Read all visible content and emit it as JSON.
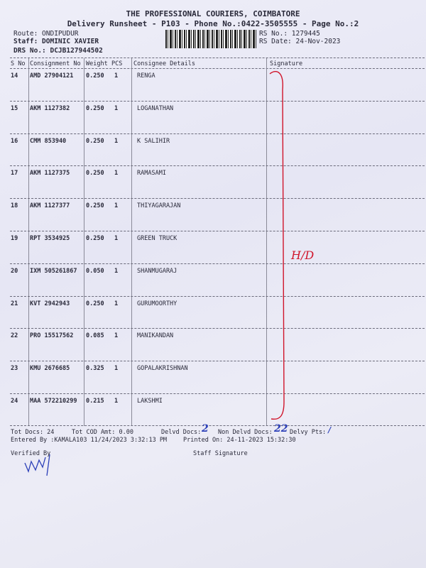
{
  "header": {
    "company": "THE PROFESSIONAL COURIERS, COIMBATORE",
    "subtitle": "Delivery Runsheet - P103 - Phone No.:0422-3505555 - Page No.:2",
    "route": "Route: ONDIPUDUR",
    "staff": "Staff: DOMINIC XAVIER",
    "drs_no": "DRS No.: DCJB127944502",
    "rs_no": "RS No.: 1279445",
    "rs_date": "RS Date: 24-Nov-2023"
  },
  "table": {
    "columns": [
      "S No",
      "Consignment No",
      "Weight",
      "PCS",
      "Consignee Details",
      "Signature"
    ],
    "rows": [
      {
        "sno": "14",
        "consignment": "AMD 27904121",
        "weight": "0.250",
        "pcs": "1",
        "consignee": "RENGA"
      },
      {
        "sno": "15",
        "consignment": "AKM 1127382",
        "weight": "0.250",
        "pcs": "1",
        "consignee": "LOGANATHAN"
      },
      {
        "sno": "16",
        "consignment": "CMM 853940",
        "weight": "0.250",
        "pcs": "1",
        "consignee": "K SALIHIR"
      },
      {
        "sno": "17",
        "consignment": "AKM 1127375",
        "weight": "0.250",
        "pcs": "1",
        "consignee": "RAMASAMI"
      },
      {
        "sno": "18",
        "consignment": "AKM 1127377",
        "weight": "0.250",
        "pcs": "1",
        "consignee": "THIYAGARAJAN"
      },
      {
        "sno": "19",
        "consignment": "RPT 3534925",
        "weight": "0.250",
        "pcs": "1",
        "consignee": "GREEN TRUCK"
      },
      {
        "sno": "20",
        "consignment": "IXM 505261867",
        "weight": "0.050",
        "pcs": "1",
        "consignee": "SHANMUGARAJ"
      },
      {
        "sno": "21",
        "consignment": "KVT 2942943",
        "weight": "0.250",
        "pcs": "1",
        "consignee": "GURUMOORTHY"
      },
      {
        "sno": "22",
        "consignment": "PRO 15517562",
        "weight": "0.085",
        "pcs": "1",
        "consignee": "MANIKANDAN"
      },
      {
        "sno": "23",
        "consignment": "KMU 2676685",
        "weight": "0.325",
        "pcs": "1",
        "consignee": "GOPALAKRISHNAN"
      },
      {
        "sno": "24",
        "consignment": "MAA 572210299",
        "weight": "0.215",
        "pcs": "1",
        "consignee": "LAKSHMI"
      }
    ]
  },
  "footer": {
    "tot_docs": "Tot Docs:  24",
    "tot_cod": "Tot COD Amt:    0.00",
    "delvd_label": "Delvd Docs:",
    "delvd_value": "2",
    "non_delvd_label": "Non Delvd Docs:",
    "non_delvd_value": "22",
    "delvy_pts_label": "Delvy Pts:",
    "delvy_pts_value": "/",
    "entered_by": "Entered By :KAMALA103 11/24/2023 3:32:13 PM",
    "printed_on": "Printed On: 24-11-2023 15:32:30",
    "verified_by": "Verified By",
    "staff_signature": "Staff Signature"
  },
  "annotations": {
    "signature_note": "H/D",
    "ink_colors": {
      "red": "#d0142a",
      "blue": "#2b3fb8"
    }
  }
}
